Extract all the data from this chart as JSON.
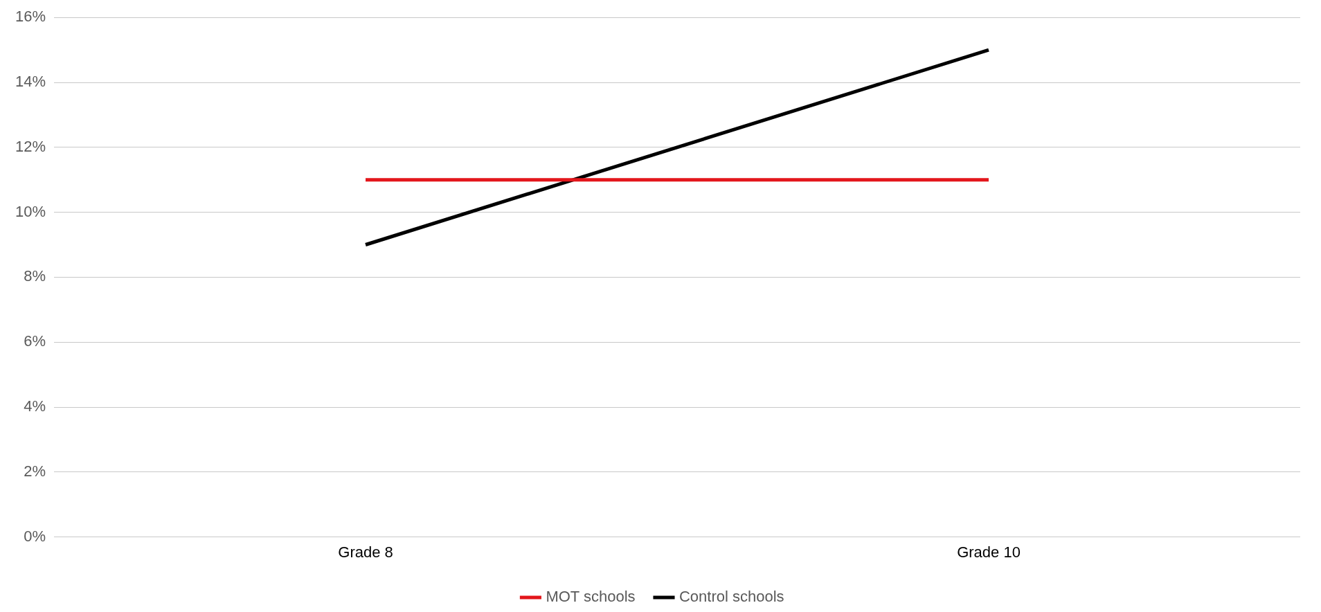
{
  "chart_data": {
    "type": "line",
    "categories": [
      "Grade 8",
      "Grade 10"
    ],
    "series": [
      {
        "name": "MOT schools",
        "color": "#e3161b",
        "values": [
          11,
          11
        ]
      },
      {
        "name": "Control schools",
        "color": "#000000",
        "values": [
          9,
          15
        ]
      }
    ],
    "ylim": [
      0,
      16
    ],
    "yticks": [
      {
        "value": 0,
        "label": "0%"
      },
      {
        "value": 2,
        "label": "2%"
      },
      {
        "value": 4,
        "label": "4%"
      },
      {
        "value": 6,
        "label": "6%"
      },
      {
        "value": 8,
        "label": "8%"
      },
      {
        "value": 10,
        "label": "10%"
      },
      {
        "value": 12,
        "label": "12%"
      },
      {
        "value": 14,
        "label": "14%"
      },
      {
        "value": 16,
        "label": "16%"
      }
    ],
    "grid": "y",
    "legend": "bottom",
    "marker": "none",
    "line_style": "solid"
  }
}
